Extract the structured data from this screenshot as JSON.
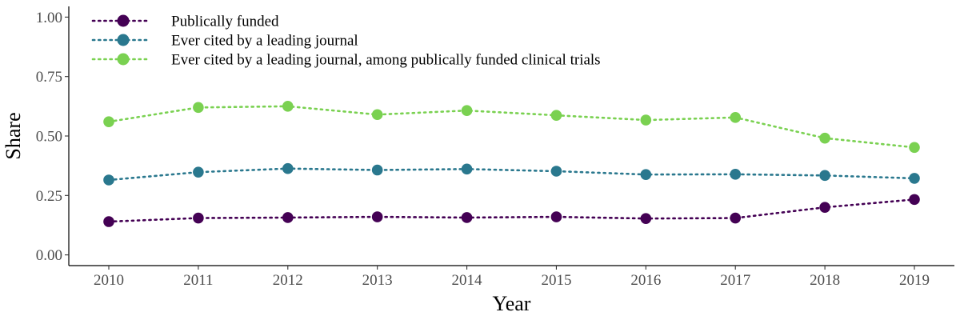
{
  "chart_data": {
    "type": "line",
    "xlabel": "Year",
    "ylabel": "Share",
    "x": [
      2010,
      2011,
      2012,
      2013,
      2014,
      2015,
      2016,
      2017,
      2018,
      2019
    ],
    "ylim": [
      0,
      1
    ],
    "yticks": [
      0,
      0.25,
      0.5,
      0.75,
      1
    ],
    "ytick_labels": [
      "0.00",
      "0.25",
      "0.50",
      "0.75",
      "1.00"
    ],
    "grid": false,
    "legend_position": "top-left",
    "series": [
      {
        "name": "Publically funded",
        "color": "#440154",
        "values": [
          0.14,
          0.155,
          0.157,
          0.16,
          0.157,
          0.16,
          0.153,
          0.155,
          0.2,
          0.233
        ]
      },
      {
        "name": "Ever cited by a leading journal",
        "color": "#2a788e",
        "values": [
          0.315,
          0.348,
          0.363,
          0.357,
          0.361,
          0.352,
          0.338,
          0.339,
          0.334,
          0.322
        ]
      },
      {
        "name": "Ever cited by a leading journal, among publically funded clinical trials",
        "color": "#7ad151",
        "values": [
          0.56,
          0.62,
          0.625,
          0.59,
          0.607,
          0.587,
          0.567,
          0.578,
          0.491,
          0.452
        ]
      }
    ]
  }
}
